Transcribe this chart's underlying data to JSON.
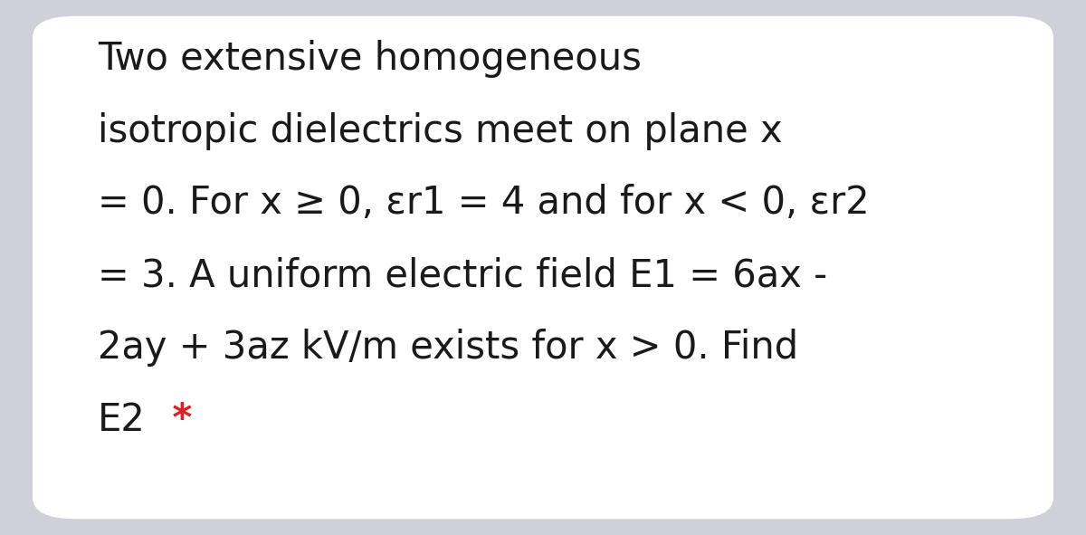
{
  "background_color": "#d0d0d8",
  "card_color": "#ffffff",
  "text_color": "#1a1a1a",
  "star_color": "#e02020",
  "lines": [
    "Two extensive homogeneous",
    "isotropic dielectrics meet on plane x",
    "= 0. For x ≥ 0, εr1 = 4 and for x < 0, εr2",
    "= 3. A uniform electric field E1 = 6ax -",
    "2ay + 3az kV/m exists for x > 0. Find",
    "E2"
  ],
  "star_line_index": 5,
  "font_size": 30,
  "fig_width": 12.0,
  "fig_height": 5.91
}
